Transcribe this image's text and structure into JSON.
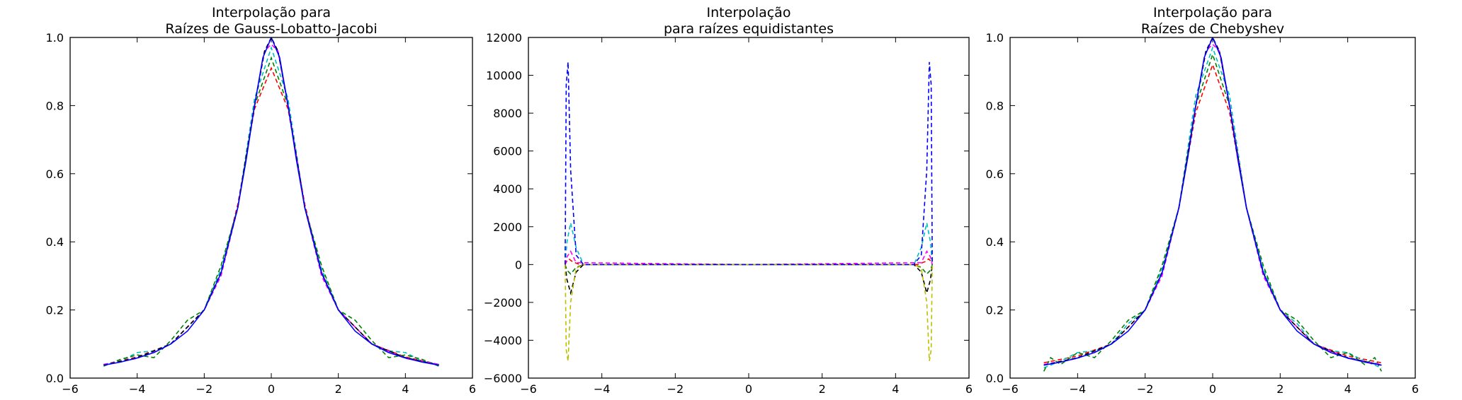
{
  "figure": {
    "background": "#ffffff"
  },
  "chart_data": [
    {
      "type": "line",
      "title": [
        "Interpolação para",
        "Raízes de Gauss-Lobatto-Jacobi"
      ],
      "xlim": [
        -6,
        6
      ],
      "ylim": [
        0,
        1.0
      ],
      "xticks": [
        -6,
        -4,
        -2,
        0,
        2,
        4,
        6
      ],
      "xtick_labels": [
        "−6",
        "−4",
        "−2",
        "0",
        "2",
        "4",
        "6"
      ],
      "yticks": [
        0,
        0.2,
        0.4,
        0.6,
        0.8,
        1.0
      ],
      "ytick_labels": [
        "0.0",
        "0.2",
        "0.4",
        "0.6",
        "0.8",
        "1.0"
      ],
      "grid": false,
      "series": [
        {
          "color": "#ff0000",
          "style": "dashed",
          "x": [
            -5,
            -4,
            -3,
            -2,
            -1.5,
            -1,
            -0.5,
            0,
            0.5,
            1,
            1.5,
            2,
            3,
            4,
            5
          ],
          "y": [
            0.04,
            0.062,
            0.1,
            0.2,
            0.31,
            0.51,
            0.79,
            0.91,
            0.79,
            0.51,
            0.31,
            0.2,
            0.1,
            0.062,
            0.04
          ]
        },
        {
          "color": "#00bfbf",
          "style": "dashed",
          "x": [
            -5,
            -4.5,
            -4,
            -3.5,
            -3,
            -2.5,
            -2,
            -1.5,
            -1,
            -0.5,
            0,
            0.5,
            1,
            1.5,
            2,
            2.5,
            3,
            3.5,
            4,
            4.5,
            5
          ],
          "y": [
            0.04,
            0.05,
            0.075,
            0.08,
            0.1,
            0.15,
            0.2,
            0.32,
            0.5,
            0.82,
            0.97,
            0.82,
            0.5,
            0.32,
            0.2,
            0.15,
            0.1,
            0.08,
            0.075,
            0.05,
            0.04
          ]
        },
        {
          "color": "#008000",
          "style": "dashed",
          "x": [
            -5,
            -4.5,
            -4,
            -3.5,
            -3,
            -2.5,
            -2,
            -1.5,
            -1,
            -0.5,
            0,
            0.5,
            1,
            1.5,
            2,
            2.5,
            3,
            3.5,
            4,
            4.5,
            5
          ],
          "y": [
            0.035,
            0.055,
            0.068,
            0.06,
            0.11,
            0.17,
            0.2,
            0.33,
            0.5,
            0.8,
            0.94,
            0.8,
            0.5,
            0.33,
            0.2,
            0.17,
            0.11,
            0.06,
            0.068,
            0.055,
            0.035
          ]
        },
        {
          "color": "#ff00ff",
          "style": "dashed",
          "x": [
            -5,
            -4,
            -3,
            -2,
            -1.5,
            -1,
            -0.5,
            -0.2,
            0,
            0.2,
            0.5,
            1,
            1.5,
            2,
            3,
            4,
            5
          ],
          "y": [
            0.04,
            0.058,
            0.1,
            0.2,
            0.3,
            0.5,
            0.8,
            0.96,
            0.98,
            0.96,
            0.8,
            0.5,
            0.3,
            0.2,
            0.1,
            0.058,
            0.04
          ]
        },
        {
          "color": "#000000",
          "style": "dashed",
          "x": [
            -5,
            -4,
            -3,
            -2,
            -1.5,
            -1,
            -0.5,
            -0.2,
            0,
            0.2,
            0.5,
            1,
            1.5,
            2,
            3,
            4,
            5
          ],
          "y": [
            0.038,
            0.06,
            0.1,
            0.2,
            0.31,
            0.5,
            0.8,
            0.96,
            1.0,
            0.96,
            0.8,
            0.5,
            0.31,
            0.2,
            0.1,
            0.06,
            0.038
          ]
        },
        {
          "color": "#0000ff",
          "style": "solid",
          "x": [
            -5,
            -4.5,
            -4,
            -3.5,
            -3,
            -2.5,
            -2,
            -1.5,
            -1,
            -0.75,
            -0.5,
            -0.25,
            0,
            0.25,
            0.5,
            0.75,
            1,
            1.5,
            2,
            2.5,
            3,
            3.5,
            4,
            4.5,
            5
          ],
          "y": [
            0.038,
            0.047,
            0.059,
            0.075,
            0.1,
            0.138,
            0.2,
            0.308,
            0.5,
            0.64,
            0.8,
            0.941,
            1.0,
            0.941,
            0.8,
            0.64,
            0.5,
            0.308,
            0.2,
            0.138,
            0.1,
            0.075,
            0.059,
            0.047,
            0.038
          ]
        }
      ]
    },
    {
      "type": "line",
      "title": [
        "Interpolação",
        "para raízes equidistantes"
      ],
      "xlim": [
        -6,
        6
      ],
      "ylim": [
        -6000,
        12000
      ],
      "xticks": [
        -6,
        -4,
        -2,
        0,
        2,
        4,
        6
      ],
      "xtick_labels": [
        "−6",
        "−4",
        "−2",
        "0",
        "2",
        "4",
        "6"
      ],
      "yticks": [
        -6000,
        -4000,
        -2000,
        0,
        2000,
        4000,
        6000,
        8000,
        10000,
        12000
      ],
      "ytick_labels": [
        "−6000",
        "−4000",
        "−2000",
        "0",
        "2000",
        "4000",
        "6000",
        "8000",
        "10000",
        "12000"
      ],
      "grid": false,
      "series": [
        {
          "color": "#ff0000",
          "style": "dashed",
          "x": [
            -5,
            -4.95,
            -4.9,
            -4.8,
            -4.6,
            0,
            4.6,
            4.8,
            4.9,
            4.95,
            5
          ],
          "y": [
            0,
            200,
            300,
            150,
            0,
            0,
            0,
            150,
            300,
            200,
            0
          ]
        },
        {
          "color": "#008000",
          "style": "dashed",
          "x": [
            -5,
            -4.95,
            -4.85,
            -4.7,
            -4.5,
            0,
            4.5,
            4.7,
            4.85,
            4.95,
            5
          ],
          "y": [
            0,
            -300,
            -500,
            -150,
            0,
            0,
            0,
            -150,
            -500,
            -300,
            0
          ]
        },
        {
          "color": "#00bfbf",
          "style": "dashed",
          "x": [
            -5,
            -4.95,
            -4.85,
            -4.7,
            -4.5,
            0,
            4.5,
            4.7,
            4.85,
            4.95,
            5
          ],
          "y": [
            0,
            1200,
            2200,
            900,
            0,
            0,
            0,
            900,
            2200,
            1200,
            0
          ]
        },
        {
          "color": "#000000",
          "style": "dashed",
          "x": [
            -5,
            -4.95,
            -4.85,
            -4.7,
            -4.5,
            0,
            4.5,
            4.7,
            4.85,
            4.95,
            5
          ],
          "y": [
            0,
            -800,
            -1500,
            -400,
            0,
            0,
            0,
            -400,
            -1500,
            -800,
            0
          ]
        },
        {
          "color": "#ff00ff",
          "style": "dashed",
          "x": [
            -5,
            -4.95,
            -4.85,
            -4.7,
            0,
            4.7,
            4.85,
            4.95,
            5
          ],
          "y": [
            0,
            400,
            700,
            100,
            0,
            100,
            700,
            400,
            0
          ]
        },
        {
          "color": "#bfbf00",
          "style": "dashed",
          "x": [
            -5,
            -4.97,
            -4.92,
            -4.85,
            -4.7,
            -4.5,
            0,
            4.5,
            4.7,
            4.85,
            4.92,
            4.97,
            5
          ],
          "y": [
            0,
            -4500,
            -5100,
            -2000,
            -200,
            0,
            0,
            0,
            -200,
            -2000,
            -5100,
            -4500,
            0
          ]
        },
        {
          "color": "#0000ff",
          "style": "dashed",
          "x": [
            -5,
            -4.97,
            -4.92,
            -4.85,
            -4.7,
            -4.5,
            0,
            4.5,
            4.7,
            4.85,
            4.92,
            4.97,
            5
          ],
          "y": [
            0,
            9500,
            10700,
            5000,
            500,
            0,
            0,
            0,
            500,
            5000,
            10700,
            9500,
            0
          ]
        }
      ]
    },
    {
      "type": "line",
      "title": [
        "Interpolação para",
        "Raízes de Chebyshev"
      ],
      "xlim": [
        -6,
        6
      ],
      "ylim": [
        0,
        1.0
      ],
      "xticks": [
        -6,
        -4,
        -2,
        0,
        2,
        4,
        6
      ],
      "xtick_labels": [
        "−6",
        "−4",
        "−2",
        "0",
        "2",
        "4",
        "6"
      ],
      "yticks": [
        0,
        0.2,
        0.4,
        0.6,
        0.8,
        1.0
      ],
      "ytick_labels": [
        "0.0",
        "0.2",
        "0.4",
        "0.6",
        "0.8",
        "1.0"
      ],
      "grid": false,
      "series": [
        {
          "color": "#ff0000",
          "style": "dashed",
          "x": [
            -5,
            -4,
            -3,
            -2,
            -1.5,
            -1,
            -0.5,
            0,
            0.5,
            1,
            1.5,
            2,
            3,
            4,
            5
          ],
          "y": [
            0.045,
            0.065,
            0.1,
            0.2,
            0.31,
            0.5,
            0.78,
            0.92,
            0.78,
            0.5,
            0.31,
            0.2,
            0.1,
            0.065,
            0.045
          ]
        },
        {
          "color": "#00bfbf",
          "style": "dashed",
          "x": [
            -5,
            -4.5,
            -4,
            -3.5,
            -3,
            -2.5,
            -2,
            -1.5,
            -1,
            -0.5,
            0,
            0.5,
            1,
            1.5,
            2,
            2.5,
            3,
            3.5,
            4,
            4.5,
            5
          ],
          "y": [
            0.03,
            0.05,
            0.075,
            0.08,
            0.1,
            0.16,
            0.2,
            0.32,
            0.5,
            0.83,
            0.97,
            0.83,
            0.5,
            0.32,
            0.2,
            0.16,
            0.1,
            0.08,
            0.075,
            0.05,
            0.03
          ]
        },
        {
          "color": "#008000",
          "style": "dashed",
          "x": [
            -5,
            -4.8,
            -4.5,
            -4,
            -3.5,
            -3,
            -2.5,
            -2,
            -1.5,
            -1,
            -0.5,
            0,
            0.5,
            1,
            1.5,
            2,
            2.5,
            3,
            3.5,
            4,
            4.5,
            4.8,
            5
          ],
          "y": [
            0.02,
            0.06,
            0.04,
            0.075,
            0.06,
            0.11,
            0.17,
            0.2,
            0.33,
            0.5,
            0.8,
            0.95,
            0.8,
            0.5,
            0.33,
            0.2,
            0.17,
            0.11,
            0.06,
            0.075,
            0.04,
            0.06,
            0.02
          ]
        },
        {
          "color": "#ff00ff",
          "style": "dashed",
          "x": [
            -5,
            -4,
            -3,
            -2,
            -1.5,
            -1,
            -0.5,
            -0.2,
            0,
            0.2,
            0.5,
            1,
            1.5,
            2,
            3,
            4,
            5
          ],
          "y": [
            0.04,
            0.058,
            0.1,
            0.2,
            0.3,
            0.5,
            0.8,
            0.96,
            0.98,
            0.96,
            0.8,
            0.5,
            0.3,
            0.2,
            0.1,
            0.058,
            0.04
          ]
        },
        {
          "color": "#000000",
          "style": "dashed",
          "x": [
            -5,
            -4,
            -3,
            -2,
            -1.5,
            -1,
            -0.5,
            -0.2,
            0,
            0.2,
            0.5,
            1,
            1.5,
            2,
            3,
            4,
            5
          ],
          "y": [
            0.038,
            0.06,
            0.1,
            0.2,
            0.31,
            0.5,
            0.8,
            0.96,
            1.0,
            0.96,
            0.8,
            0.5,
            0.31,
            0.2,
            0.1,
            0.06,
            0.038
          ]
        },
        {
          "color": "#0000ff",
          "style": "solid",
          "x": [
            -5,
            -4.5,
            -4,
            -3.5,
            -3,
            -2.5,
            -2,
            -1.5,
            -1,
            -0.75,
            -0.5,
            -0.25,
            0,
            0.25,
            0.5,
            0.75,
            1,
            1.5,
            2,
            2.5,
            3,
            3.5,
            4,
            4.5,
            5
          ],
          "y": [
            0.038,
            0.047,
            0.059,
            0.075,
            0.1,
            0.138,
            0.2,
            0.308,
            0.5,
            0.64,
            0.8,
            0.941,
            1.0,
            0.941,
            0.8,
            0.64,
            0.5,
            0.308,
            0.2,
            0.138,
            0.1,
            0.075,
            0.059,
            0.047,
            0.038
          ]
        }
      ]
    }
  ]
}
